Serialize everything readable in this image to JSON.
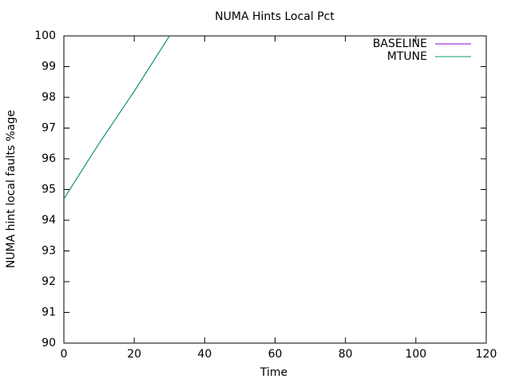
{
  "chart_data": {
    "type": "line",
    "title": "NUMA Hints Local Pct",
    "x_label": "Time",
    "y_label": "NUMA hint local faults %age",
    "x": [
      0,
      10,
      20,
      30
    ],
    "series": [
      {
        "name": "BASELINE",
        "color": "#9400d3",
        "values": [
          94.7,
          96.5,
          98.2,
          100
        ]
      },
      {
        "name": "MTUNE",
        "color": "#009e73",
        "values": [
          94.7,
          96.5,
          98.2,
          100
        ]
      }
    ],
    "xlim": [
      0,
      120
    ],
    "xticks": [
      0,
      20,
      40,
      60,
      80,
      100,
      120
    ],
    "ylim": [
      90,
      100
    ],
    "yticks": [
      90,
      91,
      92,
      93,
      94,
      95,
      96,
      97,
      98,
      99,
      100
    ],
    "grid": false,
    "legend": "top-right"
  }
}
